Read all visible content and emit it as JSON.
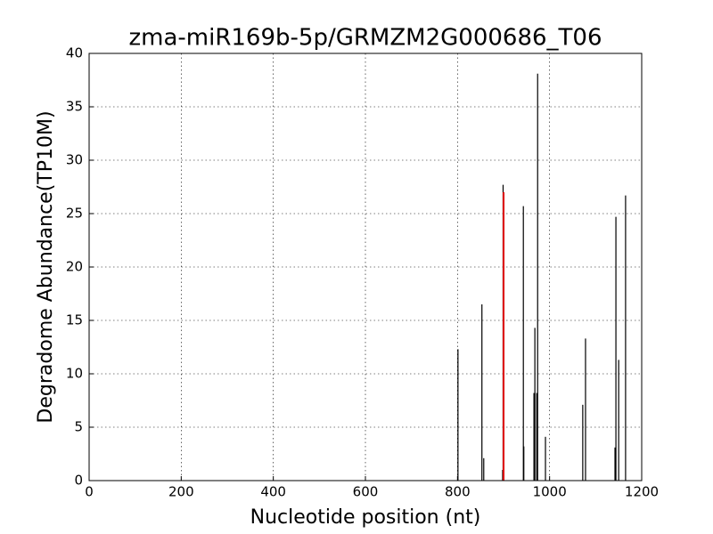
{
  "chart_data": {
    "type": "stem",
    "title": "zma-miR169b-5p/GRMZM2G000686_T06",
    "x_label": "Nucleotide position (nt)",
    "y_label": "Degradome Abundance(TP10M)",
    "xlim": [
      0,
      1200
    ],
    "xticks": [
      0,
      200,
      400,
      600,
      800,
      1000,
      1200
    ],
    "ylim": [
      0,
      40
    ],
    "yticks": [
      0,
      5,
      10,
      15,
      20,
      25,
      30,
      35,
      40
    ],
    "grid": true,
    "series": [
      {
        "color": "#000000",
        "x": [
          801,
          853,
          857,
          898,
          899,
          943,
          944,
          966,
          968,
          972,
          974,
          991,
          1072,
          1078,
          1142,
          1144,
          1150,
          1165
        ],
        "values": [
          12.3,
          16.5,
          2.1,
          1,
          27.7,
          25.7,
          3.2,
          8.2,
          14.3,
          8.2,
          38.1,
          4.1,
          7.1,
          13.3,
          3.1,
          24.7,
          11.3,
          26.7
        ]
      },
      {
        "color": "#dd0000",
        "x": [
          900
        ],
        "values": [
          27
        ]
      }
    ]
  }
}
